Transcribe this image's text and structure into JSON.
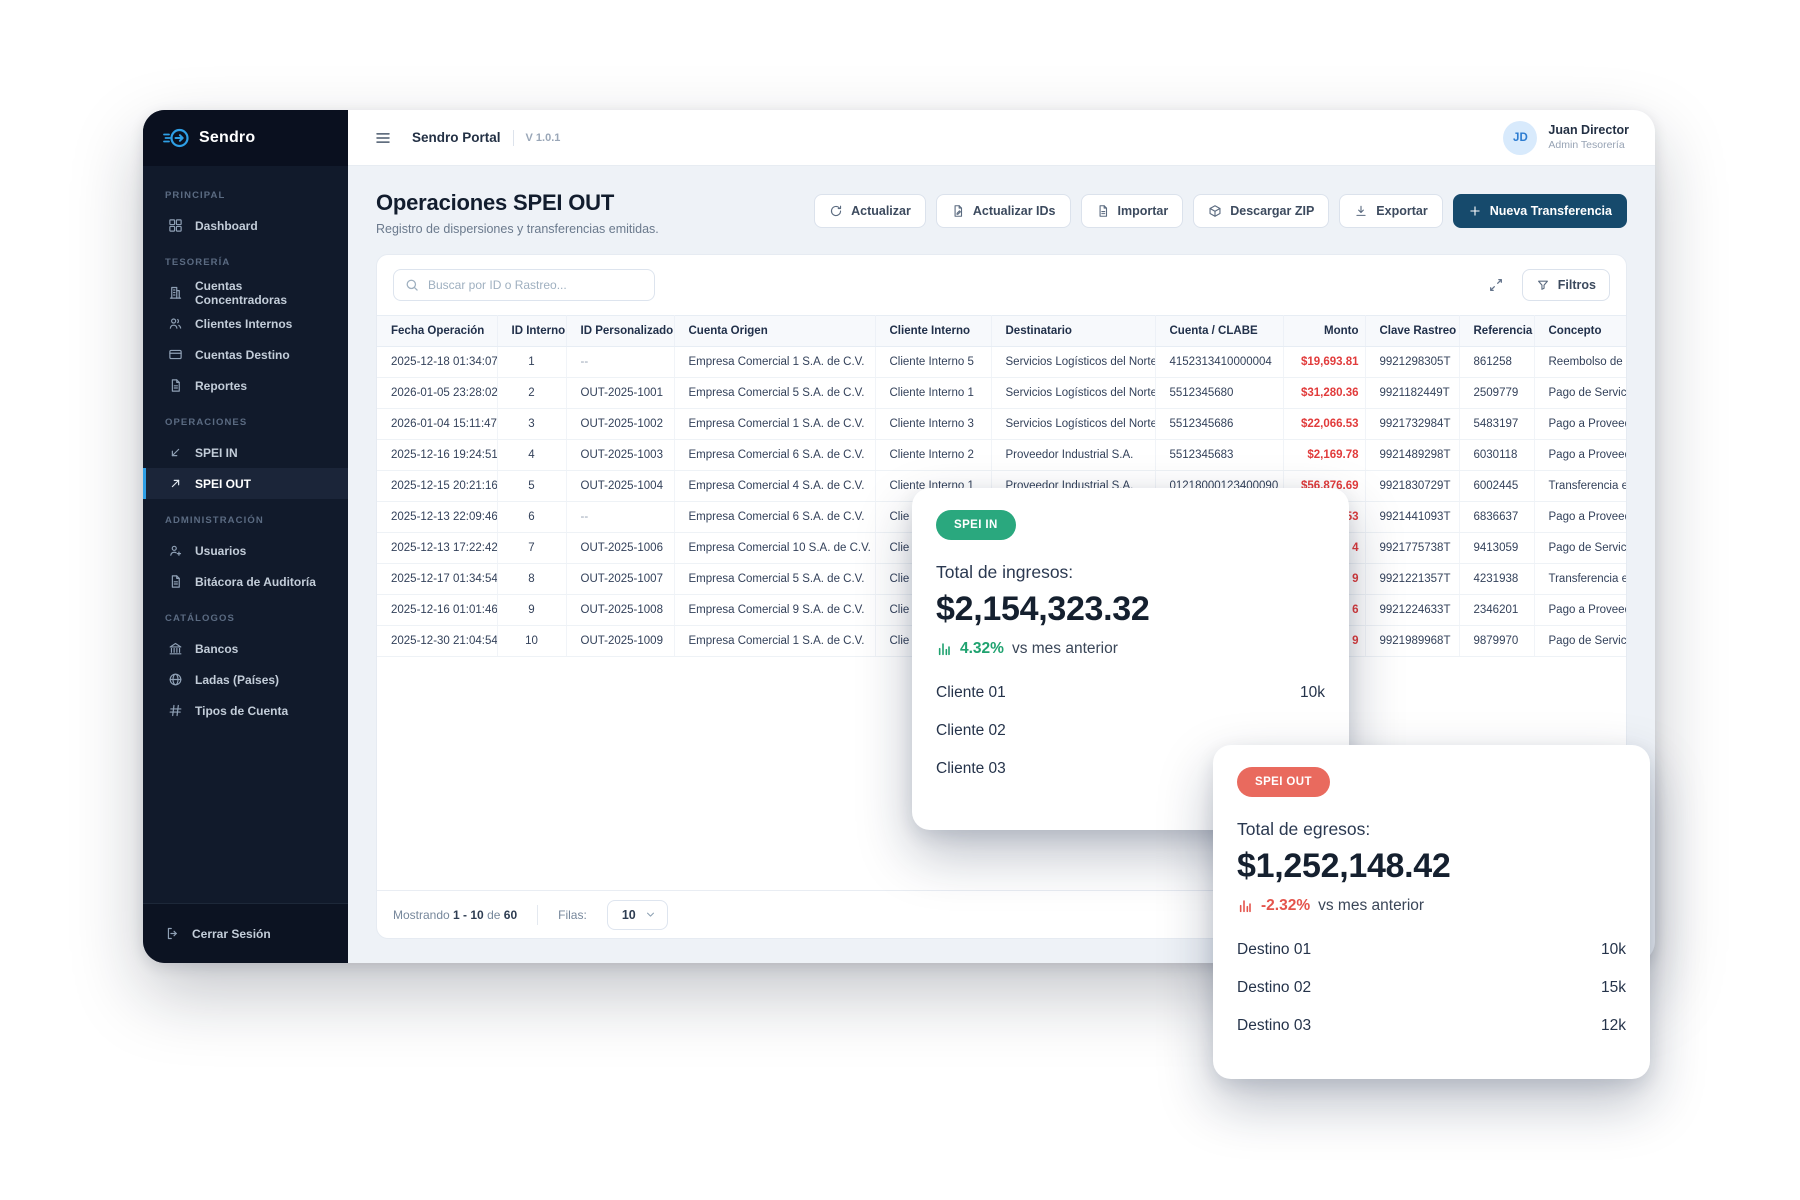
{
  "brand": {
    "name": "Sendro"
  },
  "topbar": {
    "portal": "Sendro Portal",
    "version": "V 1.0.1",
    "user": {
      "initials": "JD",
      "name": "Juan Director",
      "role": "Admin Tesorería"
    }
  },
  "sidebar": {
    "sections": [
      {
        "label": "Principal",
        "items": [
          {
            "label": "Dashboard",
            "icon": "grid",
            "active": false
          }
        ]
      },
      {
        "label": "Tesorería",
        "items": [
          {
            "label": "Cuentas Concentradoras",
            "icon": "building",
            "active": false
          },
          {
            "label": "Clientes Internos",
            "icon": "users",
            "active": false
          },
          {
            "label": "Cuentas Destino",
            "icon": "card",
            "active": false
          },
          {
            "label": "Reportes",
            "icon": "doc",
            "active": false
          }
        ]
      },
      {
        "label": "Operaciones",
        "items": [
          {
            "label": "SPEI IN",
            "icon": "arrow-dl",
            "active": false
          },
          {
            "label": "SPEI OUT",
            "icon": "arrow-ur",
            "active": true
          }
        ]
      },
      {
        "label": "Administración",
        "items": [
          {
            "label": "Usuarios",
            "icon": "user-plus",
            "active": false
          },
          {
            "label": "Bitácora de Auditoría",
            "icon": "doc",
            "active": false
          }
        ]
      },
      {
        "label": "Catálogos",
        "items": [
          {
            "label": "Bancos",
            "icon": "bank",
            "active": false
          },
          {
            "label": "Ladas (Países)",
            "icon": "globe",
            "active": false
          },
          {
            "label": "Tipos de Cuenta",
            "icon": "hash",
            "active": false
          }
        ]
      }
    ],
    "logout_label": "Cerrar Sesión"
  },
  "page": {
    "title": "Operaciones SPEI OUT",
    "subtitle": "Registro de dispersiones y transferencias emitidas.",
    "actions": [
      {
        "label": "Actualizar",
        "icon": "refresh"
      },
      {
        "label": "Actualizar IDs",
        "icon": "doc-edit"
      },
      {
        "label": "Importar",
        "icon": "file"
      },
      {
        "label": "Descargar ZIP",
        "icon": "package"
      },
      {
        "label": "Exportar",
        "icon": "download"
      }
    ],
    "primary_action": {
      "label": "Nueva Transferencia",
      "icon": "plus"
    }
  },
  "toolbar": {
    "search_placeholder": "Buscar por ID o Rastreo...",
    "filters_label": "Filtros"
  },
  "table": {
    "columns": [
      "Fecha Operación",
      "ID Interno",
      "ID Personalizado",
      "Cuenta Origen",
      "Cliente Interno",
      "Destinatario",
      "Cuenta / CLABE",
      "Monto",
      "Clave Rastreo",
      "Referencia",
      "Concepto"
    ],
    "rows": [
      {
        "fecha": "2025-12-18 01:34:07",
        "id": "1",
        "idp": "--",
        "origen": "Empresa Comercial 1 S.A. de C.V.",
        "cliente": "Cliente Interno 5",
        "dest": "Servicios Logísticos del Norte",
        "clabe": "4152313410000004",
        "monto": "$19,693.81",
        "rastreo": "9921298305T",
        "ref": "861258",
        "concepto": "Reembolso de G"
      },
      {
        "fecha": "2026-01-05 23:28:02",
        "id": "2",
        "idp": "OUT-2025-1001",
        "origen": "Empresa Comercial 5 S.A. de C.V.",
        "cliente": "Cliente Interno 1",
        "dest": "Servicios Logísticos del Norte",
        "clabe": "5512345680",
        "monto": "$31,280.36",
        "rastreo": "9921182449T",
        "ref": "2509779",
        "concepto": "Pago de Servici"
      },
      {
        "fecha": "2026-01-04 15:11:47",
        "id": "3",
        "idp": "OUT-2025-1002",
        "origen": "Empresa Comercial 1 S.A. de C.V.",
        "cliente": "Cliente Interno 3",
        "dest": "Servicios Logísticos del Norte",
        "clabe": "5512345686",
        "monto": "$22,066.53",
        "rastreo": "9921732984T",
        "ref": "5483197",
        "concepto": "Pago a Proveed"
      },
      {
        "fecha": "2025-12-16 19:24:51",
        "id": "4",
        "idp": "OUT-2025-1003",
        "origen": "Empresa Comercial 6 S.A. de C.V.",
        "cliente": "Cliente Interno 2",
        "dest": "Proveedor Industrial S.A.",
        "clabe": "5512345683",
        "monto": "$2,169.78",
        "rastreo": "9921489298T",
        "ref": "6030118",
        "concepto": "Pago a Proveed"
      },
      {
        "fecha": "2025-12-15 20:21:16",
        "id": "5",
        "idp": "OUT-2025-1004",
        "origen": "Empresa Comercial 4 S.A. de C.V.",
        "cliente": "Cliente Interno 1",
        "dest": "Proveedor Industrial S.A.",
        "clabe": "01218000123400090",
        "monto": "$56,876.69",
        "rastreo": "9921830729T",
        "ref": "6002445",
        "concepto": "Transferencia e"
      },
      {
        "fecha": "2025-12-13 22:09:46",
        "id": "6",
        "idp": "--",
        "origen": "Empresa Comercial 6 S.A. de C.V.",
        "cliente": "Clie",
        "dest": "",
        "clabe": "",
        "monto": "53",
        "rastreo": "9921441093T",
        "ref": "6836637",
        "concepto": "Pago a Proveed"
      },
      {
        "fecha": "2025-12-13 17:22:42",
        "id": "7",
        "idp": "OUT-2025-1006",
        "origen": "Empresa Comercial 10 S.A. de C.V.",
        "cliente": "Clie",
        "dest": "",
        "clabe": "",
        "monto": "4",
        "rastreo": "9921775738T",
        "ref": "9413059",
        "concepto": "Pago de Servici"
      },
      {
        "fecha": "2025-12-17 01:34:54",
        "id": "8",
        "idp": "OUT-2025-1007",
        "origen": "Empresa Comercial 5 S.A. de C.V.",
        "cliente": "Clie",
        "dest": "",
        "clabe": "",
        "monto": "9",
        "rastreo": "9921221357T",
        "ref": "4231938",
        "concepto": "Transferencia e"
      },
      {
        "fecha": "2025-12-16 01:01:46",
        "id": "9",
        "idp": "OUT-2025-1008",
        "origen": "Empresa Comercial 9 S.A. de C.V.",
        "cliente": "Clie",
        "dest": "",
        "clabe": "",
        "monto": "6",
        "rastreo": "9921224633T",
        "ref": "2346201",
        "concepto": "Pago a Proveed"
      },
      {
        "fecha": "2025-12-30 21:04:54",
        "id": "10",
        "idp": "OUT-2025-1009",
        "origen": "Empresa Comercial 1 S.A. de C.V.",
        "cliente": "Clie",
        "dest": "",
        "clabe": "",
        "monto": "9",
        "rastreo": "9921989968T",
        "ref": "9879970",
        "concepto": "Pago de Servici"
      }
    ]
  },
  "pagination": {
    "prefix": "Mostrando",
    "range": "1 - 10",
    "of": "de",
    "total": "60",
    "rows_label": "Filas:",
    "rows_value": "10"
  },
  "cards": {
    "spei_in": {
      "pill": "SPEI IN",
      "label": "Total de ingresos:",
      "amount": "$2,154,323.32",
      "delta": "4.32%",
      "delta_dir": "up",
      "vs_text": "vs mes anterior",
      "bars": [
        {
          "label": "Cliente 01",
          "value": "10k",
          "width_pct": 87
        },
        {
          "label": "Cliente 02",
          "value": "",
          "width_pct": 100
        },
        {
          "label": "Cliente 03",
          "value": "",
          "width_pct": 100
        }
      ]
    },
    "spei_out": {
      "pill": "SPEI OUT",
      "label": "Total de egresos:",
      "amount": "$1,252,148.42",
      "delta": "-2.32%",
      "delta_dir": "down",
      "vs_text": "vs mes anterior",
      "bars": [
        {
          "label": "Destino 01",
          "value": "10k",
          "width_pct": 83
        },
        {
          "label": "Destino 02",
          "value": "15k",
          "width_pct": 100
        },
        {
          "label": "Destino 03",
          "value": "12k",
          "width_pct": 93
        }
      ]
    }
  },
  "chart_data": [
    {
      "type": "bar",
      "title": "SPEI IN — Total de ingresos",
      "total": 2154323.32,
      "delta_pct": 4.32,
      "categories": [
        "Cliente 01",
        "Cliente 02",
        "Cliente 03"
      ],
      "values": [
        10000,
        null,
        null
      ],
      "value_labels": [
        "10k",
        "",
        ""
      ],
      "orientation": "horizontal"
    },
    {
      "type": "bar",
      "title": "SPEI OUT — Total de egresos",
      "total": 1252148.42,
      "delta_pct": -2.32,
      "categories": [
        "Destino 01",
        "Destino 02",
        "Destino 03"
      ],
      "values": [
        10000,
        15000,
        12000
      ],
      "value_labels": [
        "10k",
        "15k",
        "12k"
      ],
      "orientation": "horizontal"
    }
  ],
  "colors": {
    "primary": "#164a6c",
    "accent": "#2e9fe6",
    "bar": "#15516f",
    "pill_green": "#2aa87e",
    "pill_red": "#e96a5e",
    "monto_red": "#e13b3b",
    "trend_green": "#1fa26f",
    "trend_red": "#e4544c",
    "sidebar_bg": "#111a2b",
    "content_bg": "#eef2f7"
  }
}
